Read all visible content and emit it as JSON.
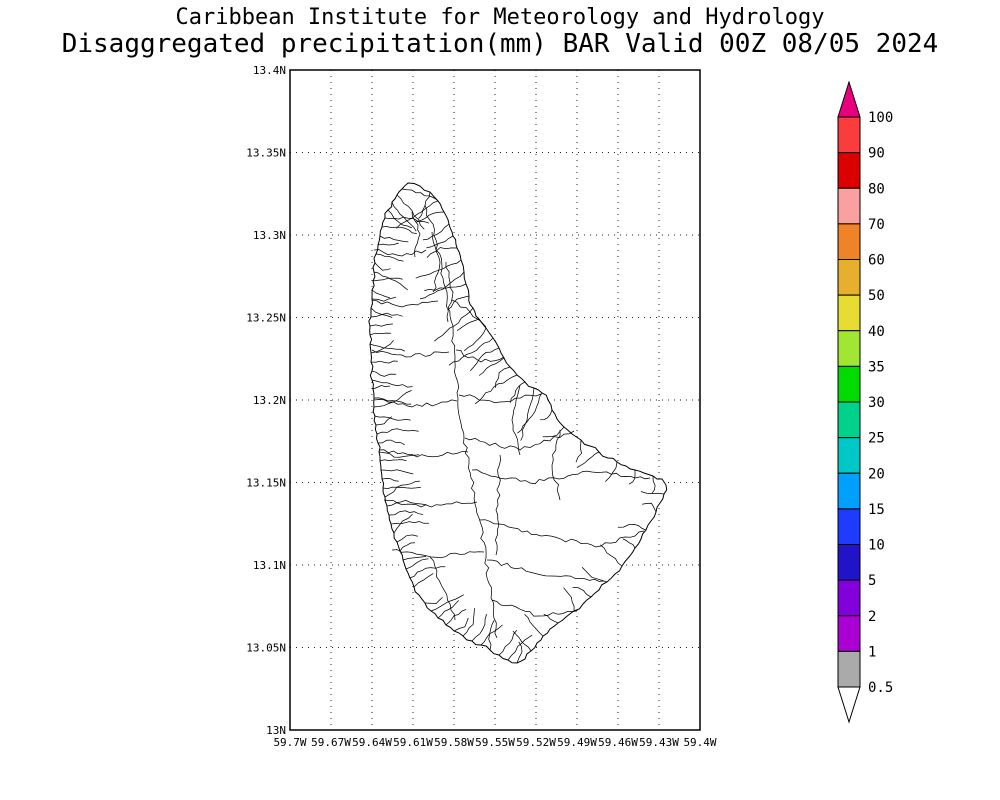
{
  "header": {
    "line1": "Caribbean Institute for Meteorology and Hydrology",
    "line2": "Disaggregated precipitation(mm) BAR Valid 00Z 08/05 2024"
  },
  "map": {
    "y_axis_ticks": [
      "13.4N",
      "13.35N",
      "13.3N",
      "13.25N",
      "13.2N",
      "13.15N",
      "13.1N",
      "13.05N",
      "13N"
    ],
    "x_axis_ticks": [
      "59.7W",
      "59.67W",
      "59.64W",
      "59.61W",
      "59.58W",
      "59.55W",
      "59.52W",
      "59.49W",
      "59.46W",
      "59.43W",
      "59.4W"
    ]
  },
  "colorbar": {
    "boundary_labels": [
      "100",
      "90",
      "80",
      "70",
      "60",
      "50",
      "40",
      "35",
      "30",
      "25",
      "20",
      "15",
      "10",
      "5",
      "2",
      "1",
      "0.5"
    ],
    "segment_colors": [
      "#fa3c3c",
      "#dc0000",
      "#faa0a0",
      "#f08228",
      "#e6af2d",
      "#e6dc32",
      "#a0e632",
      "#00dc00",
      "#00d28c",
      "#00c8c8",
      "#00a0ff",
      "#1e3cff",
      "#2114c8",
      "#8200dc",
      "#aa00d4",
      "#aaaaaa"
    ],
    "above_max_color": "#e8007e",
    "below_min_color": "#ffffff",
    "frame_color": "#000000"
  }
}
